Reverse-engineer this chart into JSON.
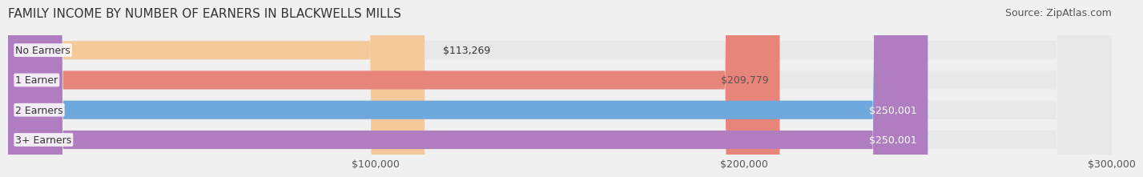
{
  "title": "FAMILY INCOME BY NUMBER OF EARNERS IN BLACKWELLS MILLS",
  "source": "Source: ZipAtlas.com",
  "categories": [
    "No Earners",
    "1 Earner",
    "2 Earners",
    "3+ Earners"
  ],
  "values": [
    113269,
    209779,
    250001,
    250001
  ],
  "bar_colors": [
    "#f5c99a",
    "#e8857a",
    "#6fa8dc",
    "#b07ec0"
  ],
  "label_colors": [
    "#555555",
    "#555555",
    "#ffffff",
    "#ffffff"
  ],
  "x_max": 300000,
  "x_ticks": [
    100000,
    200000,
    300000
  ],
  "x_tick_labels": [
    "$100,000",
    "$200,000",
    "$300,000"
  ],
  "background_color": "#f0f0f0",
  "bar_bg_color": "#e8e8e8",
  "title_fontsize": 11,
  "source_fontsize": 9,
  "label_fontsize": 9,
  "tick_fontsize": 9
}
